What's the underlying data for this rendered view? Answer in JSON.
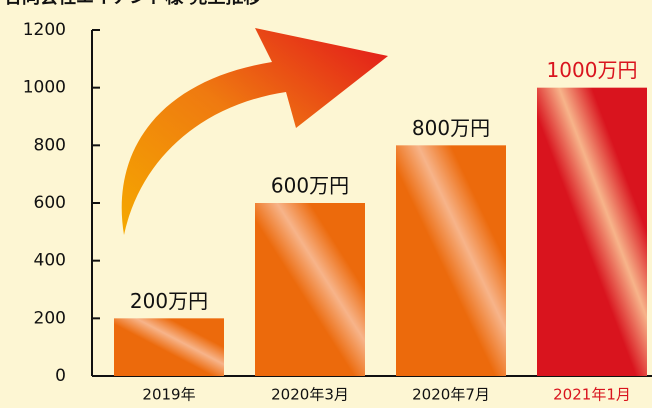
{
  "chart_data": {
    "type": "bar",
    "title": "合同会社エイアンド様 売上推移",
    "categories": [
      "2019年",
      "2020年3月",
      "2020年7月",
      "2021年1月"
    ],
    "values": [
      200,
      600,
      800,
      1000
    ],
    "value_labels": [
      "200万円",
      "600万円",
      "800万円",
      "1000万円"
    ],
    "colors": [
      "#ec6a0c",
      "#ec6a0c",
      "#ec6a0c",
      "#d9141e"
    ],
    "label_colors": [
      "#111111",
      "#111111",
      "#111111",
      "#d9141e"
    ],
    "ylim": [
      0,
      1200
    ],
    "yticks": [
      0,
      200,
      400,
      600,
      800,
      1000,
      1200
    ]
  }
}
